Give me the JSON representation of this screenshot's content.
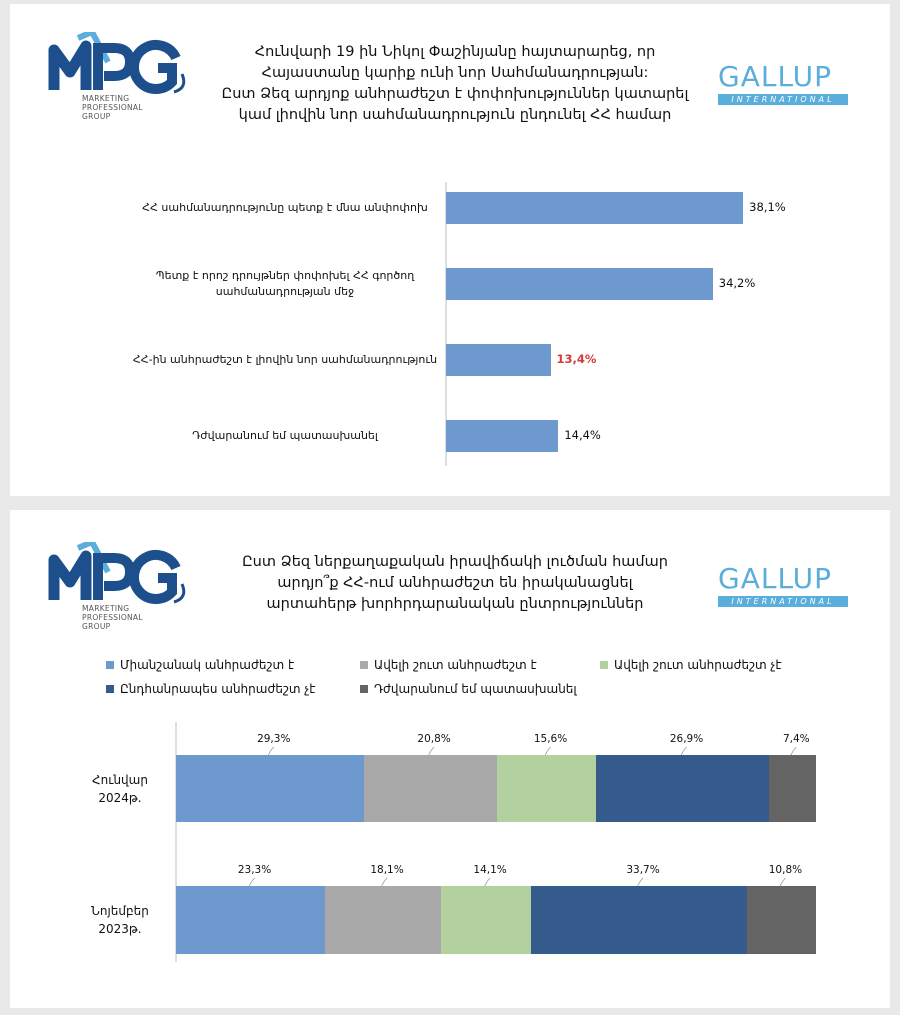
{
  "logos": {
    "mpg": {
      "letters": "MPG",
      "subtitle": [
        "MARKETING",
        "PROFESSIONAL",
        "GROUP"
      ]
    },
    "gallup": {
      "name": "GALLUP",
      "sub": "INTERNATIONAL"
    }
  },
  "colors": {
    "bar": "#6d99cf",
    "highlight_text": "#d43a3a",
    "stack": [
      "#6d99cf",
      "#a9a9a9",
      "#b3d19f",
      "#355a8c",
      "#646464"
    ]
  },
  "chart_data": [
    {
      "type": "bar",
      "orientation": "horizontal",
      "title": [
        "Հունվարի 19 ին Նիկոլ Փաշինյանը հայտարարեց, որ",
        "Հայաստանը կարիք ունի նոր Սահմանադրության:",
        "Ըստ Ձեզ արդյոք անհրաժեշտ է փոփոխություններ կատարել",
        "կամ լիովին նոր սահմանադրություն ընդունել ՀՀ համար"
      ],
      "categories": [
        [
          "ՀՀ սահմանադրությունը պետք է մնա անփոփոխ"
        ],
        [
          "Պետք է որոշ դրույթներ փոփոխել ՀՀ գործող",
          "սահմանադրության մեջ"
        ],
        [
          "ՀՀ-ին անհրաժեշտ է լիովին նոր սահմանադրություն"
        ],
        [
          "Դժվարանում եմ պատասխանել"
        ]
      ],
      "values": [
        38.1,
        34.2,
        13.4,
        14.4
      ],
      "value_labels": [
        "38,1%",
        "34,2%",
        "13,4%",
        "14,4%"
      ],
      "highlighted_index": 2,
      "unit": "%"
    },
    {
      "type": "bar",
      "orientation": "horizontal",
      "stacked": true,
      "title": [
        "Ըստ Ձեզ ներքաղաքական իրավիճակի լուծման համար",
        "արդյո՞ք ՀՀ-ում անհրաժեշտ են իրականացնել",
        "արտահերթ խորհրդարանական ընտրություններ"
      ],
      "legend": [
        "Միանշանակ անհրաժեշտ է",
        "Ավելի շուտ անհրաժեշտ է",
        "Ավելի շուտ անհրաժեշտ չէ",
        "Ընդհանրապես անհրաժեշտ չէ",
        "Դժվարանում եմ պատասխանել"
      ],
      "categories": [
        [
          "Հունվար",
          "2024թ."
        ],
        [
          "Նոյեմբեր",
          "2023թ."
        ]
      ],
      "series": [
        {
          "name": "Միանշանակ անհրաժեշտ է",
          "values": [
            29.3,
            23.3
          ],
          "labels": [
            "29,3%",
            "23,3%"
          ]
        },
        {
          "name": "Ավելի շուտ անհրաժեշտ է",
          "values": [
            20.8,
            18.1
          ],
          "labels": [
            "20,8%",
            "18,1%"
          ]
        },
        {
          "name": "Ավելի շուտ անհրաժեշտ չէ",
          "values": [
            15.6,
            14.1
          ],
          "labels": [
            "15,6%",
            "14,1%"
          ]
        },
        {
          "name": "Ընդհանրապես անհրաժեշտ չէ",
          "values": [
            26.9,
            33.7
          ],
          "labels": [
            "26,9%",
            "33,7%"
          ]
        },
        {
          "name": "Դժվարանում եմ պատասխանել",
          "values": [
            7.4,
            10.8
          ],
          "labels": [
            "7,4%",
            "10,8%"
          ]
        }
      ],
      "unit": "%"
    }
  ]
}
